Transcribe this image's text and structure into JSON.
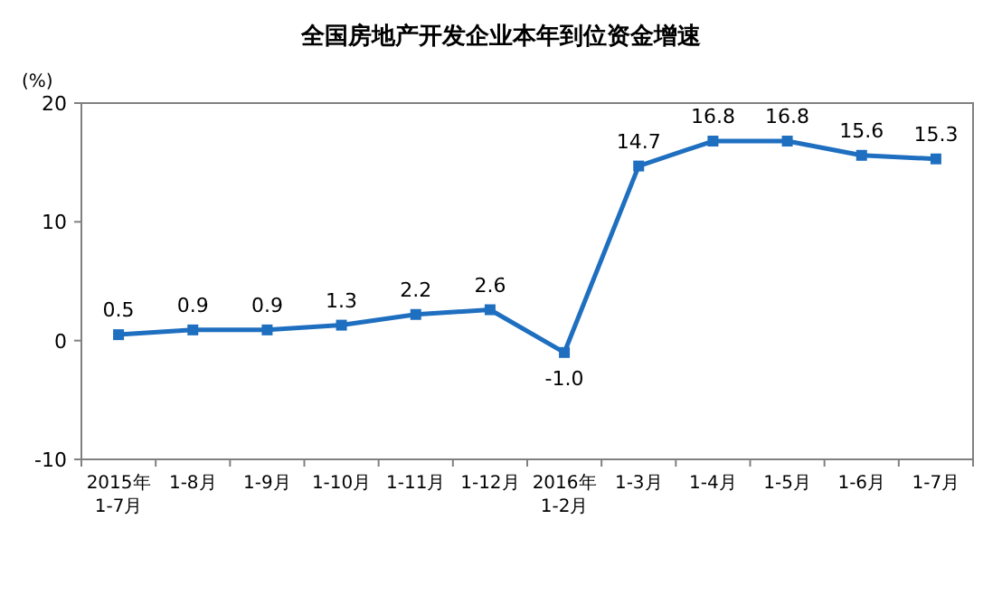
{
  "chart_data": {
    "type": "line",
    "title": "全国房地产开发企业本年到位资金增速",
    "ylabel": "(%)",
    "categories": [
      "2015年\n1-7月",
      "1-8月",
      "1-9月",
      "1-10月",
      "1-11月",
      "1-12月",
      "2016年\n1-2月",
      "1-3月",
      "1-4月",
      "1-5月",
      "1-6月",
      "1-7月"
    ],
    "values": [
      0.5,
      0.9,
      0.9,
      1.3,
      2.2,
      2.6,
      -1.0,
      14.7,
      16.8,
      16.8,
      15.6,
      15.3
    ],
    "value_labels": [
      "0.5",
      "0.9",
      "0.9",
      "1.3",
      "2.2",
      "2.6",
      "-1.0",
      "14.7",
      "16.8",
      "16.8",
      "15.6",
      "15.3"
    ],
    "color": "#1f6fc0",
    "marker": "square",
    "ylim": [
      -10,
      20
    ],
    "yticks": [
      -10,
      0,
      10,
      20
    ]
  }
}
